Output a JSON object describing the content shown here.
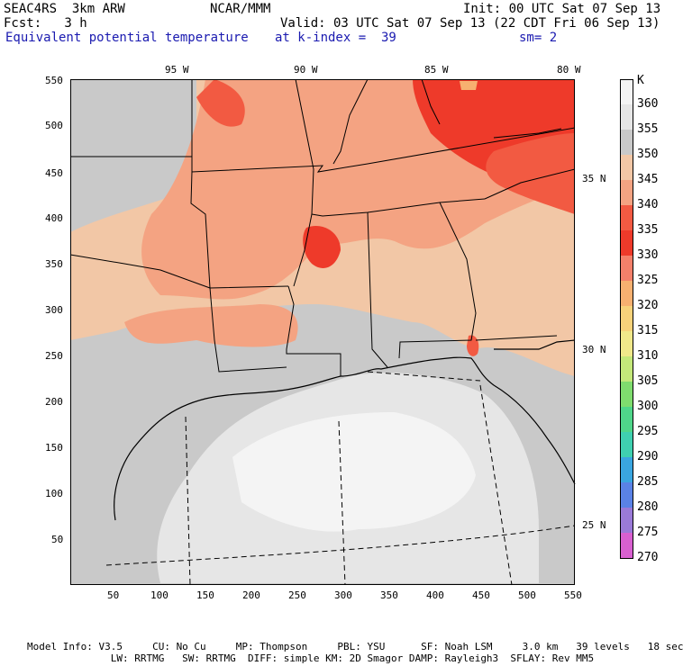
{
  "header": {
    "model": "SEAC4RS  3km ARW",
    "org": "NCAR/MMM",
    "init": "Init: 00 UTC Sat 07 Sep 13",
    "fcst": "Fcst:   3 h",
    "valid": "Valid: 03 UTC Sat 07 Sep 13 (22 CDT Fri 06 Sep 13)",
    "field": "Equivalent potential temperature",
    "level": "at k-index =  39",
    "smooth": "sm= 2"
  },
  "axes": {
    "x_ticks": [
      "50",
      "100",
      "150",
      "200",
      "250",
      "300",
      "350",
      "400",
      "450",
      "500",
      "550"
    ],
    "y_ticks": [
      "550",
      "500",
      "450",
      "400",
      "350",
      "300",
      "250",
      "200",
      "150",
      "100",
      "50"
    ],
    "lon_labels": [
      "95 W",
      "90 W",
      "85 W",
      "80 W"
    ],
    "lat_labels": [
      "35 N",
      "30 N",
      "25 N"
    ]
  },
  "colorbar": {
    "unit": "K",
    "levels": [
      {
        "label": "360",
        "color": "#f4f4f4"
      },
      {
        "label": "355",
        "color": "#e6e6e6"
      },
      {
        "label": "350",
        "color": "#c9c9c9"
      },
      {
        "label": "345",
        "color": "#f2c7a6"
      },
      {
        "label": "340",
        "color": "#f4a382"
      },
      {
        "label": "335",
        "color": "#f25a42"
      },
      {
        "label": "330",
        "color": "#ee3a2a"
      },
      {
        "label": "325",
        "color": "#f4806a"
      },
      {
        "label": "320",
        "color": "#f7b070"
      },
      {
        "label": "315",
        "color": "#f7d27a"
      },
      {
        "label": "310",
        "color": "#f0e88a"
      },
      {
        "label": "305",
        "color": "#c4e87a"
      },
      {
        "label": "300",
        "color": "#7fdc6e"
      },
      {
        "label": "295",
        "color": "#4fd68a"
      },
      {
        "label": "290",
        "color": "#3fd0b0"
      },
      {
        "label": "285",
        "color": "#3aa6e0"
      },
      {
        "label": "280",
        "color": "#5a82e6"
      },
      {
        "label": "275",
        "color": "#9a7ad8"
      },
      {
        "label": "270",
        "color": "#d860d0"
      }
    ]
  },
  "footer": {
    "line1": "Model Info: V3.5     CU: No Cu     MP: Thompson     PBL: YSU      SF: Noah LSM     3.0 km   39 levels   18 sec",
    "line2": "              LW: RRTMG   SW: RRTMG  DIFF: simple KM: 2D Smagor DAMP: Rayleigh3  SFLAY: Rev MM5"
  }
}
